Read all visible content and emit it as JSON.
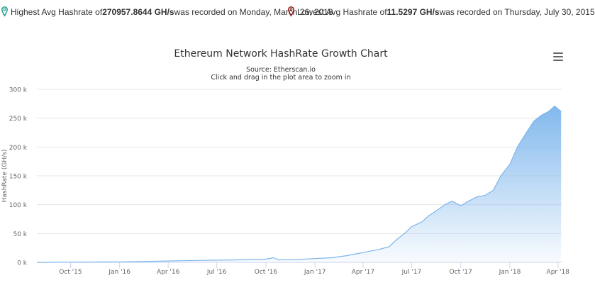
{
  "info": {
    "high_prefix": "Highest Avg Hashrate of ",
    "high_value": "270957.8644 GH/s",
    "high_suffix": " was recorded on Monday, March 26, 2018",
    "low_prefix": "Lowest Avg Hashrate of ",
    "low_value": "11.5297 GH/s",
    "low_suffix": " was recorded on Thursday, July 30, 2015",
    "high_pin_color": "#2a9d8f",
    "low_pin_color": "#8b1a1a"
  },
  "chart_data": {
    "type": "area",
    "title": "Ethereum Network HashRate Growth Chart",
    "subtitle": "Source: Etherscan.io",
    "subtitle2": "Click and drag in the plot area to zoom in",
    "ylabel": "HashRate (GH/s)",
    "xlabel": "",
    "ylim": [
      0,
      300000
    ],
    "y_ticks": [
      0,
      50000,
      100000,
      150000,
      200000,
      250000,
      300000
    ],
    "y_tick_labels": [
      "0 k",
      "50 k",
      "100 k",
      "150 k",
      "200 k",
      "250 k",
      "300 k"
    ],
    "xlim": [
      "2015-07-30",
      "2018-04-08"
    ],
    "x_ticks": [
      "2015-10-01",
      "2016-01-01",
      "2016-04-01",
      "2016-07-01",
      "2016-10-01",
      "2017-01-01",
      "2017-04-01",
      "2017-07-01",
      "2017-10-01",
      "2018-01-01",
      "2018-04-01"
    ],
    "x_tick_labels": [
      "Oct '15",
      "Jan '16",
      "Apr '16",
      "Jul '16",
      "Oct '16",
      "Jan '17",
      "Apr '17",
      "Jul '17",
      "Oct '17",
      "Jan '18",
      "Apr '18"
    ],
    "grid": true,
    "color": "#7cb5ec",
    "series": [
      {
        "x": [
          "2015-07-30",
          "2015-09-01",
          "2015-10-01",
          "2015-11-01",
          "2015-12-01",
          "2016-01-01",
          "2016-02-01",
          "2016-03-01",
          "2016-04-01",
          "2016-05-01",
          "2016-06-01",
          "2016-07-01",
          "2016-08-01",
          "2016-09-01",
          "2016-10-01",
          "2016-10-15",
          "2016-10-25",
          "2016-11-01",
          "2016-12-01",
          "2017-01-01",
          "2017-02-01",
          "2017-03-01",
          "2017-04-01",
          "2017-05-01",
          "2017-05-20",
          "2017-06-01",
          "2017-06-20",
          "2017-07-01",
          "2017-07-20",
          "2017-08-01",
          "2017-08-20",
          "2017-09-01",
          "2017-09-15",
          "2017-10-01",
          "2017-10-15",
          "2017-11-01",
          "2017-11-15",
          "2017-12-01",
          "2017-12-15",
          "2018-01-01",
          "2018-01-15",
          "2018-02-01",
          "2018-02-15",
          "2018-03-01",
          "2018-03-15",
          "2018-03-26",
          "2018-04-01",
          "2018-04-07"
        ],
        "values": [
          12,
          150,
          350,
          500,
          700,
          900,
          1200,
          1700,
          2300,
          2800,
          3500,
          3800,
          4200,
          4800,
          5500,
          8000,
          4200,
          4500,
          5000,
          6500,
          8000,
          11500,
          17000,
          22500,
          27000,
          38000,
          52000,
          62000,
          70000,
          80000,
          92000,
          100000,
          106000,
          98000,
          106000,
          114000,
          116000,
          125000,
          150000,
          170000,
          200000,
          225000,
          245000,
          255000,
          262000,
          270958,
          266000,
          262000
        ]
      }
    ]
  }
}
